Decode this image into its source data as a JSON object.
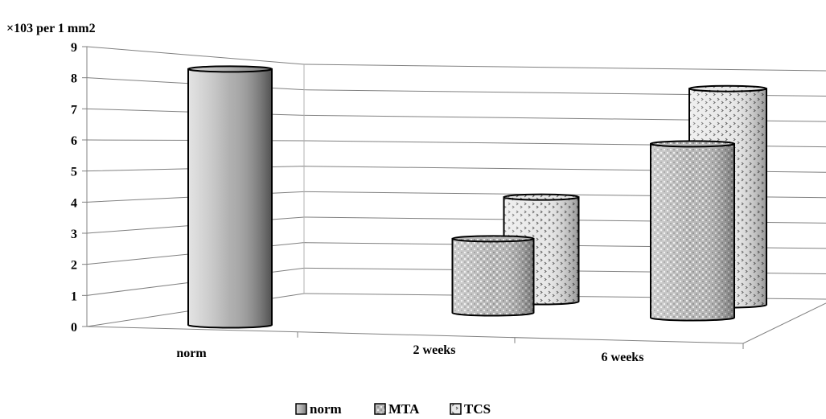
{
  "chart_data": {
    "type": "bar",
    "variant": "3d-cylinder",
    "y_unit_label": "×103 per  1 mm2",
    "categories": [
      "norm",
      "2 weeks",
      "6 weeks"
    ],
    "yticks": [
      "0",
      "1",
      "2",
      "3",
      "4",
      "5",
      "6",
      "7",
      "8",
      "9"
    ],
    "ylim": [
      0,
      9
    ],
    "grid": true,
    "legend_position": "bottom",
    "series": [
      {
        "name": "norm",
        "values": [
          8.2,
          null,
          null
        ],
        "color": "#a6a6a6"
      },
      {
        "name": "MTA",
        "values": [
          null,
          2.4,
          5.6
        ],
        "color": "#c8c8c8"
      },
      {
        "name": "TCS",
        "values": [
          null,
          3.4,
          7.0
        ],
        "color": "#e2e2e2"
      }
    ]
  }
}
